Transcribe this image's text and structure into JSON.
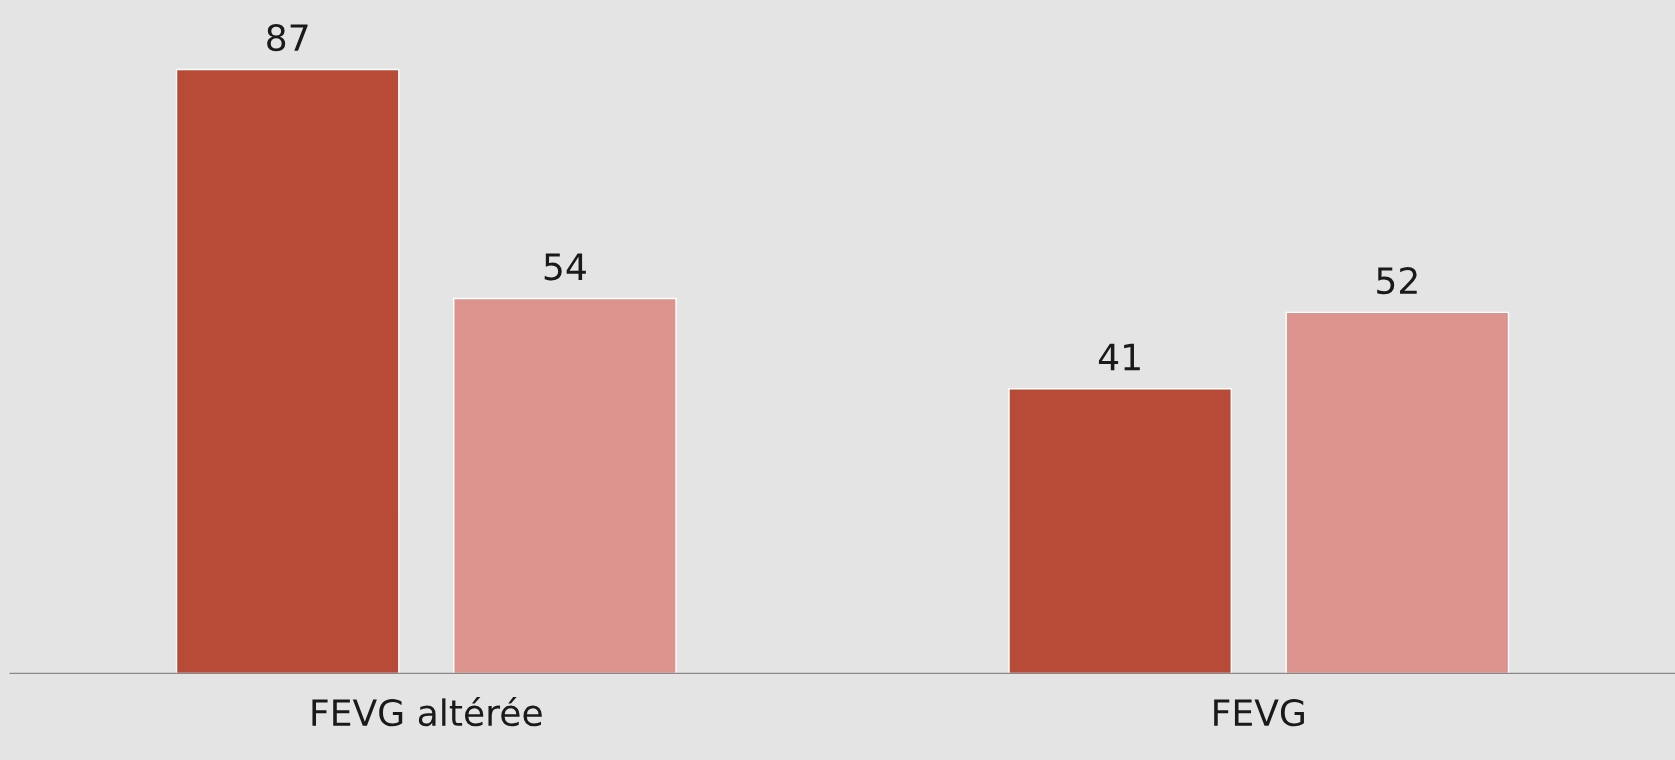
{
  "chart_data": {
    "type": "bar",
    "categories": [
      "FEVG altérée",
      "FEVG"
    ],
    "series": [
      {
        "color": "#b84b38",
        "values": [
          87,
          41
        ]
      },
      {
        "color": "#dc928d",
        "values": [
          54,
          52
        ]
      }
    ],
    "data_labels": true,
    "grid": false,
    "legend": false,
    "tick_labels": "x"
  }
}
